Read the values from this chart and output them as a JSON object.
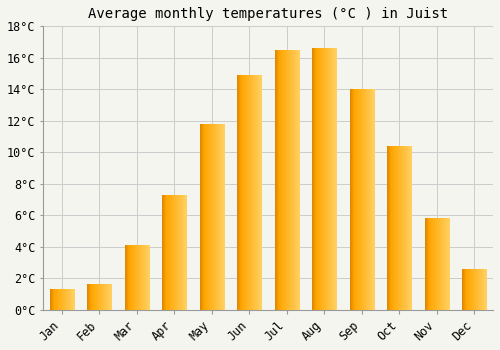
{
  "title": "Average monthly temperatures (°C ) in Juist",
  "months": [
    "Jan",
    "Feb",
    "Mar",
    "Apr",
    "May",
    "Jun",
    "Jul",
    "Aug",
    "Sep",
    "Oct",
    "Nov",
    "Dec"
  ],
  "temperatures": [
    1.3,
    1.6,
    4.1,
    7.3,
    11.8,
    14.9,
    16.5,
    16.6,
    14.0,
    10.4,
    5.8,
    2.6
  ],
  "bar_color_main": "#FFA500",
  "bar_color_light": "#FFD050",
  "bar_color_dark": "#E08000",
  "background_color": "#F5F5F0",
  "grid_color": "#CCCCCC",
  "spine_color": "#999999",
  "ylim": [
    0,
    18
  ],
  "yticks": [
    0,
    2,
    4,
    6,
    8,
    10,
    12,
    14,
    16,
    18
  ],
  "title_fontsize": 10,
  "tick_fontsize": 8.5,
  "font_family": "monospace"
}
